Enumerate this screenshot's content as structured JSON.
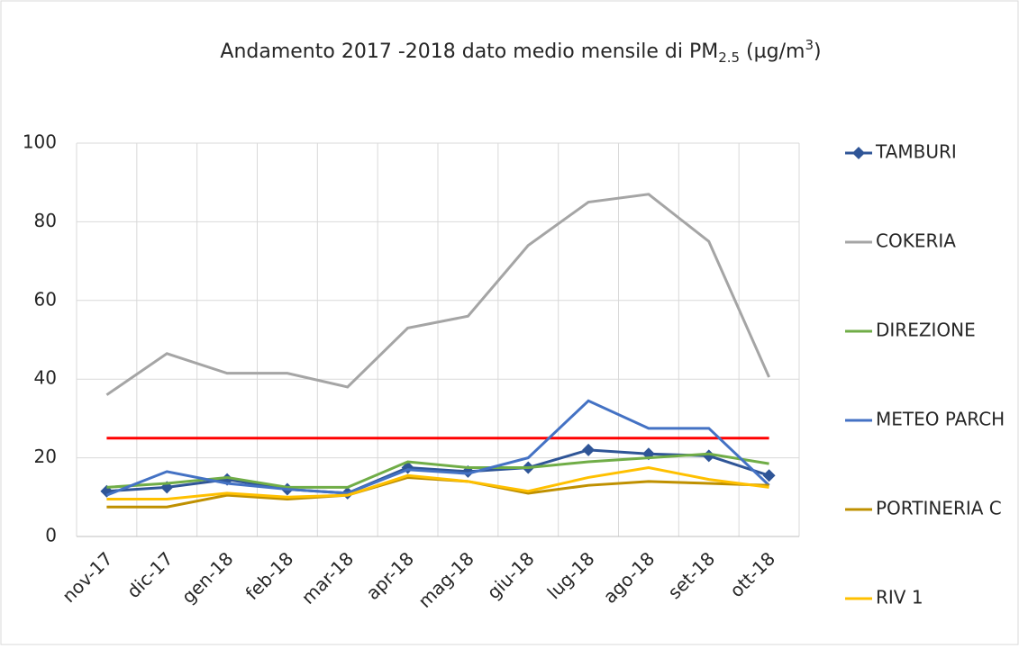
{
  "chart_data": {
    "type": "line",
    "title": [
      "Andamento 2017 -2018 dato medio mensile di PM",
      "2.5",
      " (µg/m",
      "3",
      ")"
    ],
    "categories": [
      "nov-17",
      "dic-17",
      "gen-18",
      "feb-18",
      "mar-18",
      "apr-18",
      "mag-18",
      "giu-18",
      "lug-18",
      "ago-18",
      "set-18",
      "ott-18"
    ],
    "series": [
      {
        "name": "TAMBURI",
        "color": "#2f5597",
        "marker": "diamond",
        "values": [
          11.5,
          12.5,
          14.5,
          12,
          11,
          17.5,
          16.5,
          17.5,
          22,
          21,
          20.5,
          15.5
        ]
      },
      {
        "name": "COKERIA",
        "color": "#a5a5a5",
        "values": [
          36,
          46.5,
          41.5,
          41.5,
          38,
          53,
          56,
          74,
          85,
          87,
          75,
          40.5
        ]
      },
      {
        "name": "DIREZIONE",
        "color": "#70ad47",
        "values": [
          12.5,
          13.5,
          15,
          12.5,
          12.5,
          19,
          17.5,
          17.5,
          19,
          20,
          21,
          18.5
        ]
      },
      {
        "name": "METEO PARCH",
        "color": "#4472c4",
        "values": [
          10.5,
          16.5,
          13.5,
          12,
          11,
          17,
          16,
          20,
          34.5,
          27.5,
          27.5,
          13
        ]
      },
      {
        "name": "PORTINERIA C",
        "color": "#bf9000",
        "values": [
          7.5,
          7.5,
          10.5,
          9.5,
          10.5,
          15,
          14,
          11,
          13,
          14,
          13.5,
          13
        ]
      },
      {
        "name": "RIV 1",
        "color": "#ffc000",
        "values": [
          9.5,
          9.5,
          11,
          10,
          10.5,
          15.5,
          14,
          11.5,
          15,
          17.5,
          14.5,
          12.5
        ]
      }
    ],
    "reference_line": {
      "value": 25,
      "color": "#ff0000"
    },
    "ylim": [
      0,
      100
    ],
    "yticks": [
      0,
      20,
      40,
      60,
      80,
      100
    ],
    "grid": true,
    "legend": "right"
  }
}
